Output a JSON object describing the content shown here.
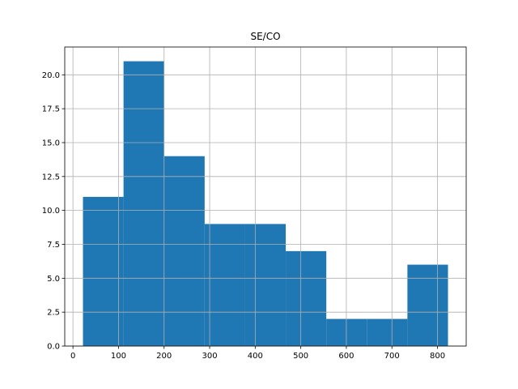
{
  "chart_data": {
    "type": "bar",
    "title": "SE/CO",
    "xlabel": "",
    "ylabel": "",
    "bins": [
      {
        "start": 22,
        "end": 111,
        "count": 11
      },
      {
        "start": 111,
        "end": 200,
        "count": 21
      },
      {
        "start": 200,
        "end": 289,
        "count": 14
      },
      {
        "start": 289,
        "end": 378,
        "count": 9
      },
      {
        "start": 378,
        "end": 467,
        "count": 9
      },
      {
        "start": 467,
        "end": 556,
        "count": 7
      },
      {
        "start": 556,
        "end": 645,
        "count": 2
      },
      {
        "start": 645,
        "end": 734,
        "count": 2
      },
      {
        "start": 734,
        "end": 823,
        "count": 6
      }
    ],
    "xlim": [
      -18,
      863
    ],
    "ylim": [
      0,
      22.05
    ],
    "xticks": [
      0,
      100,
      200,
      300,
      400,
      500,
      600,
      700,
      800
    ],
    "yticks": [
      0.0,
      2.5,
      5.0,
      7.5,
      10.0,
      12.5,
      15.0,
      17.5,
      20.0
    ],
    "xtick_labels": [
      "0",
      "100",
      "200",
      "300",
      "400",
      "500",
      "600",
      "700",
      "800"
    ],
    "ytick_labels": [
      "0.0",
      "2.5",
      "5.0",
      "7.5",
      "10.0",
      "12.5",
      "15.0",
      "17.5",
      "20.0"
    ],
    "grid": true,
    "bar_color": "#1f77b4",
    "grid_color": "#b0b0b0"
  }
}
